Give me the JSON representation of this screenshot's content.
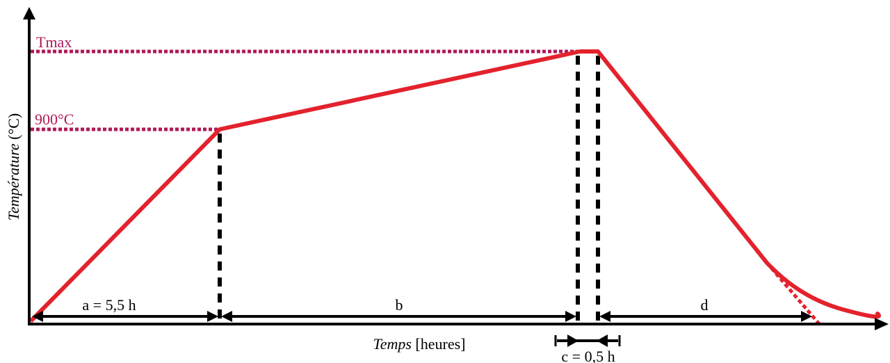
{
  "axes": {
    "y_label_italic": "Température",
    "y_label_unit": " (°C)",
    "x_label_italic": "Temps",
    "x_label_unit": " [heures]"
  },
  "levels": {
    "tmax": "Tmax",
    "t900": "900°C"
  },
  "durations": {
    "a": "a = 5,5 h",
    "b": "b",
    "c": "c = 0,5 h",
    "d": "d"
  },
  "colors": {
    "curve": "#e3222d",
    "guide": "#b0195a",
    "axis": "#000000"
  }
}
